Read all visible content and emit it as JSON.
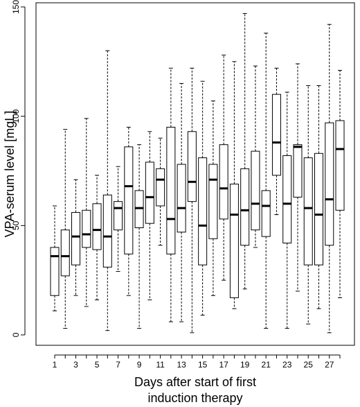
{
  "chart_data": {
    "type": "boxplot",
    "title": "",
    "xlabel": "Days after start of first induction therapy",
    "xlabel_lines": [
      "Days after start of first",
      "induction therapy"
    ],
    "ylabel": "VPA-serum level [mgL]",
    "ylim": [
      0,
      150
    ],
    "y_ticks": [
      0,
      50,
      100,
      150
    ],
    "x_tick_labels": [
      "1",
      "3",
      "5",
      "7",
      "9",
      "11",
      "13",
      "15",
      "17",
      "19",
      "21",
      "23",
      "25",
      "27"
    ],
    "grid": false,
    "categories": [
      1,
      2,
      3,
      4,
      5,
      6,
      7,
      8,
      9,
      10,
      11,
      12,
      13,
      14,
      15,
      16,
      17,
      18,
      19,
      20,
      21,
      22,
      23,
      24,
      25,
      26,
      27,
      28
    ],
    "boxes": [
      {
        "day": 1,
        "whisker_low": 11,
        "q1": 18,
        "median": 36,
        "q3": 40,
        "whisker_high": 59
      },
      {
        "day": 2,
        "whisker_low": 3,
        "q1": 27,
        "median": 36,
        "q3": 48,
        "whisker_high": 94
      },
      {
        "day": 3,
        "whisker_low": 18,
        "q1": 32,
        "median": 45,
        "q3": 56,
        "whisker_high": 71
      },
      {
        "day": 4,
        "whisker_low": 13,
        "q1": 40,
        "median": 46,
        "q3": 57,
        "whisker_high": 99
      },
      {
        "day": 5,
        "whisker_low": 16,
        "q1": 39,
        "median": 48,
        "q3": 60,
        "whisker_high": 73
      },
      {
        "day": 6,
        "whisker_low": 2,
        "q1": 31,
        "median": 45,
        "q3": 64,
        "whisker_high": 130
      },
      {
        "day": 7,
        "whisker_low": 29,
        "q1": 48,
        "median": 58,
        "q3": 61,
        "whisker_high": 77
      },
      {
        "day": 8,
        "whisker_low": 18,
        "q1": 37,
        "median": 68,
        "q3": 86,
        "whisker_high": 95
      },
      {
        "day": 9,
        "whisker_low": 3,
        "q1": 49,
        "median": 58,
        "q3": 66,
        "whisker_high": 87
      },
      {
        "day": 10,
        "whisker_low": 16,
        "q1": 51,
        "median": 63,
        "q3": 79,
        "whisker_high": 93
      },
      {
        "day": 11,
        "whisker_low": 41,
        "q1": 59,
        "median": 71,
        "q3": 76,
        "whisker_high": 90
      },
      {
        "day": 12,
        "whisker_low": 6,
        "q1": 37,
        "median": 53,
        "q3": 95,
        "whisker_high": 122
      },
      {
        "day": 13,
        "whisker_low": 6,
        "q1": 47,
        "median": 58,
        "q3": 78,
        "whisker_high": 115
      },
      {
        "day": 14,
        "whisker_low": 1,
        "q1": 61,
        "median": 70,
        "q3": 93,
        "whisker_high": 122
      },
      {
        "day": 15,
        "whisker_low": 9,
        "q1": 32,
        "median": 50,
        "q3": 81,
        "whisker_high": 116
      },
      {
        "day": 16,
        "whisker_low": 18,
        "q1": 44,
        "median": 71,
        "q3": 78,
        "whisker_high": 107
      },
      {
        "day": 17,
        "whisker_low": 25,
        "q1": 53,
        "median": 67,
        "q3": 87,
        "whisker_high": 128
      },
      {
        "day": 18,
        "whisker_low": 12,
        "q1": 17,
        "median": 55,
        "q3": 69,
        "whisker_high": 125
      },
      {
        "day": 19,
        "whisker_low": 21,
        "q1": 41,
        "median": 57,
        "q3": 76,
        "whisker_high": 147
      },
      {
        "day": 20,
        "whisker_low": 40,
        "q1": 48,
        "median": 60,
        "q3": 84,
        "whisker_high": 123
      },
      {
        "day": 21,
        "whisker_low": 3,
        "q1": 45,
        "median": 59,
        "q3": 66,
        "whisker_high": 138
      },
      {
        "day": 22,
        "whisker_low": 55,
        "q1": 73,
        "median": 88,
        "q3": 110,
        "whisker_high": 122
      },
      {
        "day": 23,
        "whisker_low": 3,
        "q1": 42,
        "median": 60,
        "q3": 82,
        "whisker_high": 111
      },
      {
        "day": 24,
        "whisker_low": 20,
        "q1": 63,
        "median": 86,
        "q3": 87,
        "whisker_high": 124
      },
      {
        "day": 25,
        "whisker_low": 5,
        "q1": 32,
        "median": 58,
        "q3": 81,
        "whisker_high": 114
      },
      {
        "day": 26,
        "whisker_low": 12,
        "q1": 32,
        "median": 55,
        "q3": 83,
        "whisker_high": 114
      },
      {
        "day": 27,
        "whisker_low": 1,
        "q1": 41,
        "median": 62,
        "q3": 97,
        "whisker_high": 142
      },
      {
        "day": 28,
        "whisker_low": 17,
        "q1": 57,
        "median": 85,
        "q3": 98,
        "whisker_high": 121
      }
    ]
  }
}
